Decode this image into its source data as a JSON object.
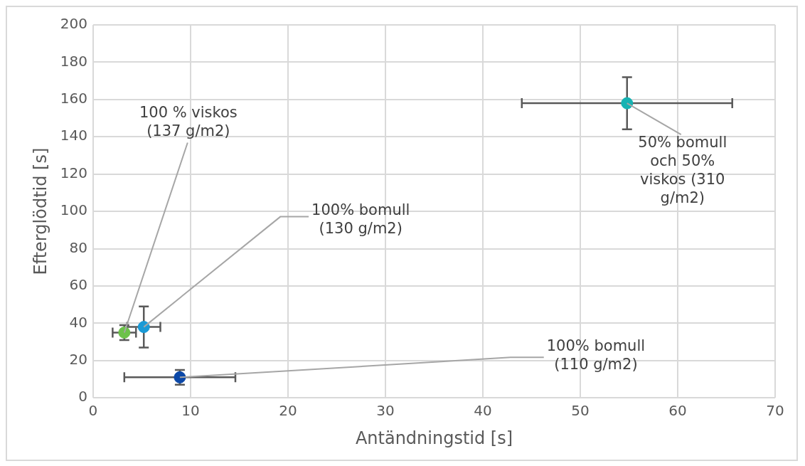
{
  "chart_data": {
    "type": "scatter",
    "xlabel": "Antändningstid [s]",
    "ylabel": "Efterglödtid [s]",
    "x": [
      3.2,
      5.2,
      8.9,
      54.8
    ],
    "values": [
      35,
      38,
      11,
      158
    ],
    "colors": [
      "#6cc24a",
      "#1a9ad6",
      "#0b48a8",
      "#16b3b3"
    ],
    "xerrors": [
      1.2,
      1.7,
      5.7,
      10.8
    ],
    "errors": [
      4,
      11,
      4,
      14
    ],
    "xlim": [
      0,
      70
    ],
    "xticks": [
      0,
      10,
      20,
      30,
      40,
      50,
      60,
      70
    ],
    "ylim": [
      0,
      200
    ],
    "yticks": [
      0,
      20,
      40,
      60,
      80,
      100,
      120,
      140,
      160,
      180,
      200
    ],
    "grid": true,
    "legend": false,
    "marker": "circle",
    "annotations": [
      {
        "text": "100 % viskos\n(137 g/m2)",
        "x": 3.2,
        "y": 35
      },
      {
        "text": "100% bomull\n(130 g/m2)",
        "x": 5.2,
        "y": 38
      },
      {
        "text": "100% bomull\n(110 g/m2)",
        "x": 8.9,
        "y": 11
      },
      {
        "text": "50% bomull\noch 50%\nviskos (310\ng/m2)",
        "x": 54.8,
        "y": 158
      }
    ]
  }
}
